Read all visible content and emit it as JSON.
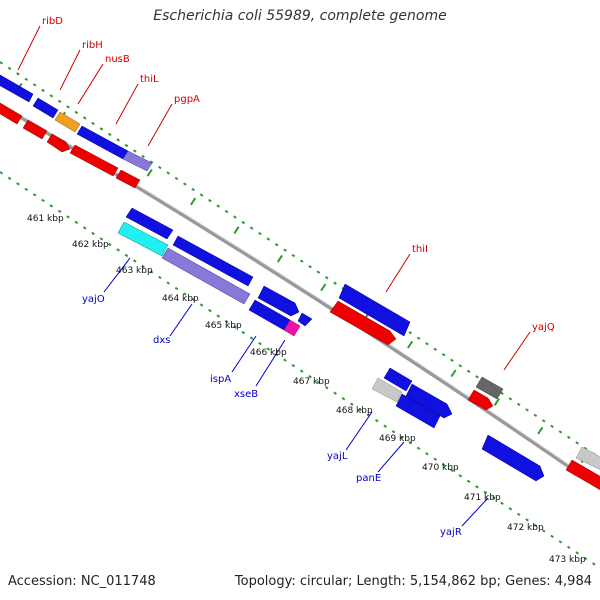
{
  "title": "Escherichia coli 55989, complete genome",
  "footer": {
    "accession": "Accession: NC_011748",
    "stats": "Topology: circular; Length: 5,154,862 bp; Genes: 4,984"
  },
  "colors": {
    "forward_cds": "#1010e0",
    "reverse_cds": "#ee0000",
    "orange_feature": "#f0a020",
    "violet_feature": "#8878d8",
    "cyan_feature": "#20f0f0",
    "magenta_feature": "#ee10aa",
    "grey_feature": "#c8c8c8",
    "dark_grey_feature": "#666666",
    "backbone": "#999999",
    "tick_marks": "#2e9a2e",
    "top_labels": "#d10000",
    "bottom_labels": "#0000cc"
  },
  "kbp_ticks": [
    "461 kbp",
    "462 kbp",
    "463 kbp",
    "464 kbp",
    "465 kbp",
    "466 kbp",
    "467 kbp",
    "468 kbp",
    "469 kbp",
    "470 kbp",
    "471 kbp",
    "472 kbp",
    "473 kbp"
  ],
  "top_genes": [
    "ribD",
    "ribH",
    "nusB",
    "thiL",
    "pgpA",
    "thiI",
    "yajQ"
  ],
  "bottom_genes": [
    "yajO",
    "dxs",
    "ispA",
    "xseB",
    "yajL",
    "panE",
    "yajR"
  ]
}
